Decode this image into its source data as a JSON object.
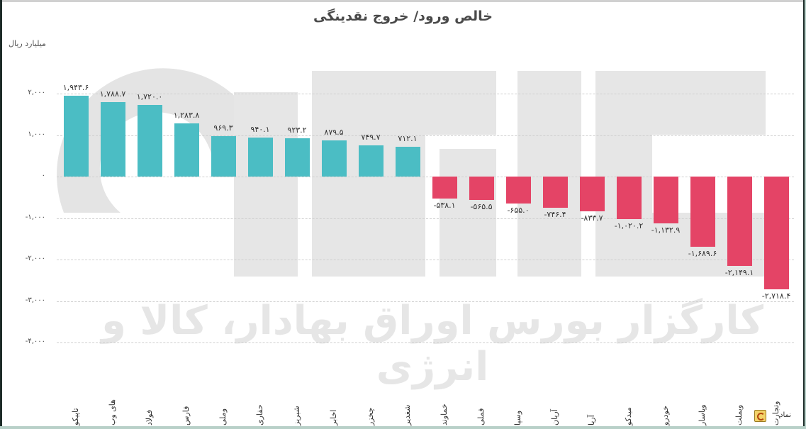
{
  "header": {
    "title": "خالص ورود/ خروج نقدینگی",
    "unit_label": "میلیارد ریال"
  },
  "watermark": {
    "text": "کارگزار بورس اوراق بهادار، کالا و انرژی"
  },
  "footer": {
    "legend_label": "نماد",
    "refresh_icon": "refresh-icon"
  },
  "colors": {
    "positive": "#4bbdc4",
    "negative": "#e44466",
    "grid": "#cfcfcf"
  },
  "y_ticks": [
    {
      "value": 2000,
      "label": "۲,۰۰۰"
    },
    {
      "value": 1000,
      "label": "۱,۰۰۰"
    },
    {
      "value": 0,
      "label": "۰"
    },
    {
      "value": -1000,
      "label": "-۱,۰۰۰"
    },
    {
      "value": -2000,
      "label": "-۲,۰۰۰"
    },
    {
      "value": -3000,
      "label": "-۳,۰۰۰"
    },
    {
      "value": -4000,
      "label": "-۴,۰۰۰"
    }
  ],
  "bars": [
    {
      "name": "تاپیکو",
      "value": 1943.6,
      "label": "۱,۹۴۳.۶"
    },
    {
      "name": "های وب",
      "value": 1788.7,
      "label": "۱,۷۸۸.۷"
    },
    {
      "name": "فولاد",
      "value": 1720.0,
      "label": "۱,۷۲۰.۰"
    },
    {
      "name": "فارس",
      "value": 1283.8,
      "label": "۱,۲۸۳.۸"
    },
    {
      "name": "وملی",
      "value": 969.3,
      "label": "۹۶۹.۳"
    },
    {
      "name": "حفاری",
      "value": 940.1,
      "label": "۹۴۰.۱"
    },
    {
      "name": "شبریز",
      "value": 923.2,
      "label": "۹۲۳.۲"
    },
    {
      "name": "اخابر",
      "value": 879.5,
      "label": "۸۷۹.۵"
    },
    {
      "name": "چخزر",
      "value": 749.7,
      "label": "۷۴۹.۷"
    },
    {
      "name": "شغدیر",
      "value": 712.1,
      "label": "۷۱۲.۱"
    },
    {
      "name": "خماوند",
      "value": -538.1,
      "label": "-۵۳۸.۱"
    },
    {
      "name": "فملی",
      "value": -565.5,
      "label": "-۵۶۵.۵"
    },
    {
      "name": "وسپا",
      "value": -655.0,
      "label": "-۶۵۵.۰"
    },
    {
      "name": "آریان",
      "value": -746.4,
      "label": "-۷۴۶.۴"
    },
    {
      "name": "آریا",
      "value": -833.7,
      "label": "-۸۳۳.۷"
    },
    {
      "name": "میدکو",
      "value": -1020.2,
      "label": "-۱,۰۲۰.۲"
    },
    {
      "name": "خودرو",
      "value": -1132.9,
      "label": "-۱,۱۳۲.۹"
    },
    {
      "name": "وپاسار",
      "value": -1689.6,
      "label": "-۱,۶۸۹.۶"
    },
    {
      "name": "وبملت",
      "value": -2149.1,
      "label": "-۲,۱۴۹.۱"
    },
    {
      "name": "وتجارت",
      "value": -2718.4,
      "label": "-۲,۷۱۸.۴"
    }
  ],
  "chart_data": {
    "type": "bar",
    "title": "خالص ورود/ خروج نقدینگی",
    "ylabel": "میلیارد ریال",
    "xlabel": "نماد",
    "ylim": [
      -4000,
      2500
    ],
    "grid": true,
    "legend": "none",
    "categories": [
      "تاپیکو",
      "های وب",
      "فولاد",
      "فارس",
      "وملی",
      "حفاری",
      "شبریز",
      "اخابر",
      "چخزر",
      "شغدیر",
      "خماوند",
      "فملی",
      "وسپا",
      "آریان",
      "آریا",
      "میدکو",
      "خودرو",
      "وپاسار",
      "وبملت",
      "وتجارت"
    ],
    "values": [
      1943.6,
      1788.7,
      1720.0,
      1283.8,
      969.3,
      940.1,
      923.2,
      879.5,
      749.7,
      712.1,
      -538.1,
      -565.5,
      -655.0,
      -746.4,
      -833.7,
      -1020.2,
      -1132.9,
      -1689.6,
      -2149.1,
      -2718.4
    ],
    "y_ticks": [
      2000,
      1000,
      0,
      -1000,
      -2000,
      -3000,
      -4000
    ],
    "positive_color": "#4bbdc4",
    "negative_color": "#e44466"
  }
}
